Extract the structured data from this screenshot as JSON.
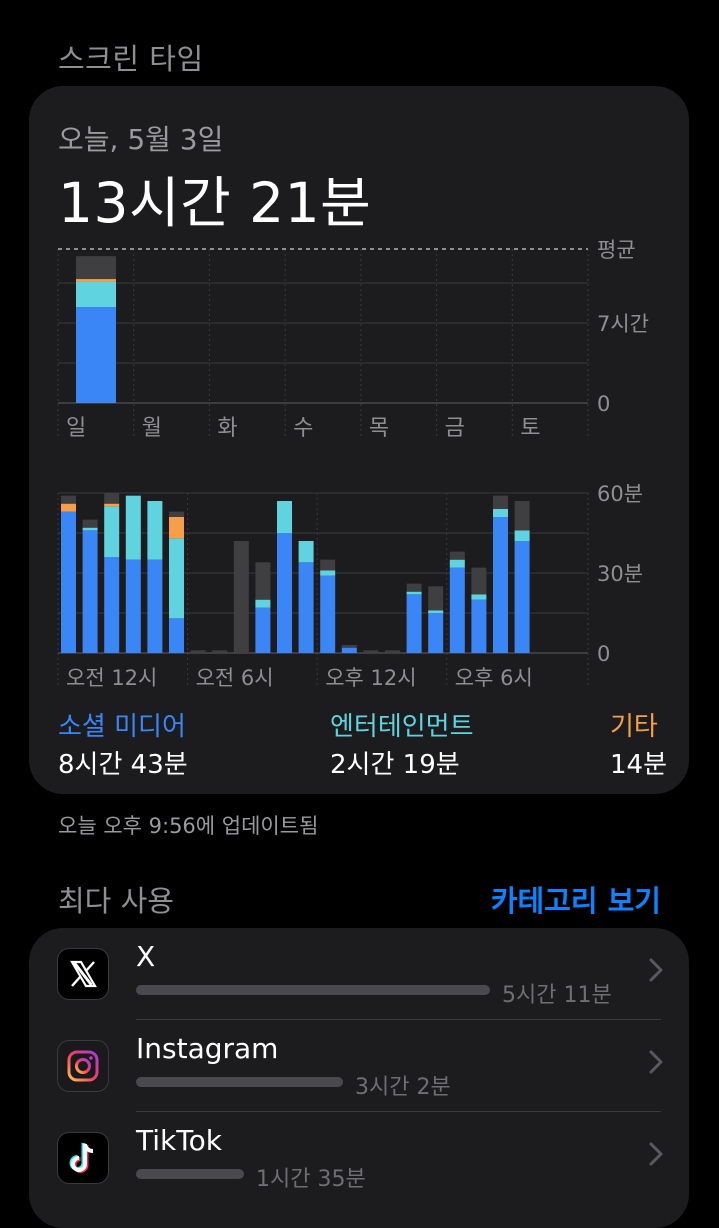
{
  "header": {
    "title": "스크린 타임"
  },
  "summary": {
    "date": "오늘, 5월 3일",
    "total": "13시간 21분"
  },
  "colors": {
    "social": "#3a86f7",
    "entertainment": "#5fd4e0",
    "other": "#f5a048",
    "uncategorized": "#3f3f42",
    "accent": "#0a84ff"
  },
  "chart_data": [
    {
      "type": "bar",
      "title": "",
      "xlabel": "",
      "ylabel": "",
      "categories": [
        "일",
        "월",
        "화",
        "수",
        "목",
        "금",
        "토"
      ],
      "y_tick_labels": [
        "평균",
        "7시간",
        "0"
      ],
      "ylim": [
        0,
        14
      ],
      "average_line": true,
      "stacked": true,
      "series": [
        {
          "name": "소셜 미디어",
          "values": [
            8.72,
            0,
            0,
            0,
            0,
            0,
            0
          ]
        },
        {
          "name": "엔터테인먼트",
          "values": [
            2.32,
            0,
            0,
            0,
            0,
            0,
            0
          ]
        },
        {
          "name": "기타",
          "values": [
            0.23,
            0,
            0,
            0,
            0,
            0,
            0
          ]
        },
        {
          "name": "",
          "values": [
            2.08,
            0,
            0,
            0,
            0,
            0,
            0
          ]
        }
      ]
    },
    {
      "type": "bar",
      "title": "",
      "xlabel": "",
      "ylabel": "",
      "x_tick_labels": [
        "오전 12시",
        "오전 6시",
        "오후 12시",
        "오후 6시"
      ],
      "y_tick_labels": [
        "60분",
        "30분",
        "0"
      ],
      "ylim": [
        0,
        60
      ],
      "stacked": true,
      "hours": [
        0,
        1,
        2,
        3,
        4,
        5,
        6,
        7,
        8,
        9,
        10,
        11,
        12,
        13,
        14,
        15,
        16,
        17,
        18,
        19,
        20,
        21,
        22,
        23
      ],
      "series": [
        {
          "name": "소셜 미디어",
          "values": [
            53,
            46,
            36,
            35,
            35,
            13,
            0,
            0,
            0,
            17,
            45,
            34,
            29,
            2,
            0,
            0,
            22,
            15,
            32,
            20,
            51,
            42,
            0,
            0
          ]
        },
        {
          "name": "엔터테인먼트",
          "values": [
            0,
            1,
            19,
            24,
            22,
            30,
            0,
            0,
            0,
            3,
            12,
            8,
            2,
            0,
            0,
            0,
            1,
            1,
            3,
            2,
            3,
            4,
            0,
            0
          ]
        },
        {
          "name": "기타",
          "values": [
            3,
            0,
            1,
            0,
            0,
            8,
            0,
            0,
            0,
            0,
            0,
            0,
            0,
            0,
            0,
            0,
            0,
            0,
            0,
            0,
            0,
            0,
            0,
            0
          ]
        },
        {
          "name": "",
          "values": [
            3,
            3,
            4,
            0,
            0,
            2,
            1,
            1,
            42,
            14,
            0,
            0,
            4,
            1,
            1,
            1,
            3,
            9,
            3,
            10,
            5,
            11,
            0,
            0
          ]
        }
      ]
    }
  ],
  "categories_summary": [
    {
      "label": "소셜 미디어",
      "time": "8시간 43분"
    },
    {
      "label": "엔터테인먼트",
      "time": "2시간 19분"
    },
    {
      "label": "기타",
      "time": "14분"
    }
  ],
  "updated": "오늘 오후 9:56에 업데이트됨",
  "most_used": {
    "title": "최다 사용",
    "view_categories": "카테고리 보기",
    "apps": [
      {
        "name": "X",
        "time": "5시간 11분",
        "share": 1.0,
        "icon": "x-logo-icon"
      },
      {
        "name": "Instagram",
        "time": "3시간 2분",
        "share": 0.585,
        "icon": "instagram-icon"
      },
      {
        "name": "TikTok",
        "time": "1시간 35분",
        "share": 0.305,
        "icon": "tiktok-icon"
      }
    ]
  }
}
